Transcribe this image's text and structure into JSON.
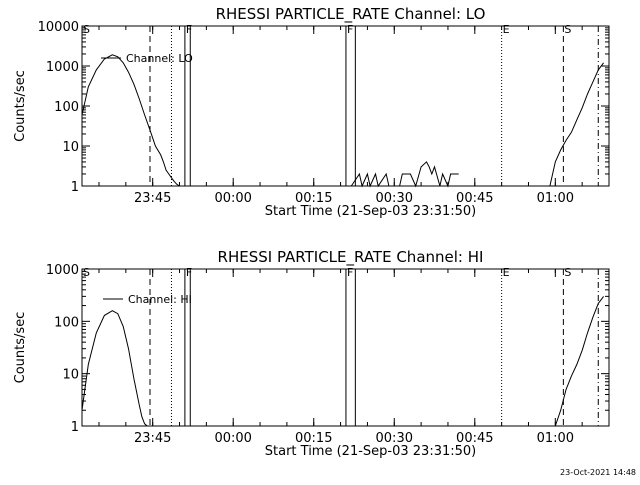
{
  "chart_data": [
    {
      "type": "line",
      "title": "RHESSI PARTICLE_RATE Channel: LO",
      "xlabel": "Start Time (21-Sep-03 23:31:50)",
      "ylabel": "Counts/sec",
      "y_scale": "log",
      "ylim": [
        1,
        10000
      ],
      "y_ticks": [
        "1",
        "10",
        "100",
        "1000",
        "10000"
      ],
      "x_ticks": [
        "23:45",
        "00:00",
        "00:15",
        "00:30",
        "00:45",
        "01:00"
      ],
      "xlim": [
        "23:31:50",
        "01:10:00"
      ],
      "legend": {
        "entries": [
          "Channel: LO"
        ],
        "placement": "top-left"
      },
      "series": [
        {
          "name": "Channel: LO",
          "x": [
            "23:31:50",
            "23:33:00",
            "23:34:30",
            "23:36:00",
            "23:37:30",
            "23:38:30",
            "23:39:30",
            "23:40:30",
            "23:41:30",
            "23:42:30",
            "23:43:30",
            "23:44:30",
            "23:45:30",
            "23:46:30",
            "23:47:00",
            "23:47:30",
            "23:48:00",
            "23:48:30",
            "23:49:00",
            "23:49:30",
            "23:50:00",
            "00:22:00",
            "00:23:30",
            "00:24:00",
            "00:25:00",
            "00:25:30",
            "00:26:30",
            "00:27:00",
            "00:28:30",
            "00:29:00",
            "00:31:00",
            "00:31:30",
            "00:33:00",
            "00:34:00",
            "00:35:00",
            "00:36:00",
            "00:36:30",
            "00:37:00",
            "00:37:30",
            "00:38:30",
            "00:39:00",
            "00:40:00",
            "00:40:30",
            "00:41:00",
            "00:42:00",
            "00:59:00",
            "00:59:30",
            "01:00:00",
            "01:01:00",
            "01:02:00",
            "01:03:00",
            "01:04:00",
            "01:05:00",
            "01:06:00",
            "01:07:00",
            "01:08:00",
            "01:09:00"
          ],
          "y": [
            60,
            300,
            800,
            1500,
            1900,
            1700,
            1200,
            700,
            350,
            150,
            60,
            25,
            10,
            6,
            4,
            2.5,
            2,
            1.6,
            1.3,
            1.1,
            1,
            1,
            2,
            1,
            2,
            1,
            2,
            1,
            2,
            1,
            1,
            2,
            2,
            1,
            3,
            4,
            3,
            2,
            3,
            1,
            2,
            1,
            2,
            2,
            2,
            1,
            2,
            4,
            8,
            14,
            22,
            45,
            90,
            200,
            400,
            800,
            1200
          ]
        }
      ],
      "markers": [
        {
          "label": "S",
          "time": "23:31:50",
          "style": "solid"
        },
        {
          "label": "",
          "time": "23:44:30",
          "style": "dashed"
        },
        {
          "label": "",
          "time": "23:48:30",
          "style": "dotted"
        },
        {
          "label": "F",
          "time": "23:51:00",
          "style": "solid"
        },
        {
          "label": "",
          "time": "23:52:00",
          "style": "solid"
        },
        {
          "label": "F",
          "time": "00:21:00",
          "style": "solid"
        },
        {
          "label": "",
          "time": "00:22:45",
          "style": "solid"
        },
        {
          "label": "E",
          "time": "00:50:00",
          "style": "dotted"
        },
        {
          "label": "S",
          "time": "01:01:30",
          "style": "dashed"
        },
        {
          "label": "",
          "time": "01:08:00",
          "style": "dashdot"
        }
      ]
    },
    {
      "type": "line",
      "title": "RHESSI PARTICLE_RATE Channel: HI",
      "xlabel": "Start Time (21-Sep-03 23:31:50)",
      "ylabel": "Counts/sec",
      "y_scale": "log",
      "ylim": [
        1,
        1000
      ],
      "y_ticks": [
        "1",
        "10",
        "100",
        "1000"
      ],
      "x_ticks": [
        "23:45",
        "00:00",
        "00:15",
        "00:30",
        "00:45",
        "01:00"
      ],
      "xlim": [
        "23:31:50",
        "01:10:00"
      ],
      "legend": {
        "entries": [
          "Channel: HI"
        ],
        "placement": "top-left"
      },
      "series": [
        {
          "name": "Channel: HI",
          "x": [
            "23:31:50",
            "23:33:00",
            "23:34:30",
            "23:36:00",
            "23:37:30",
            "23:38:30",
            "23:39:30",
            "23:40:30",
            "23:41:30",
            "23:42:30",
            "23:43:00",
            "23:43:30",
            "23:44:00",
            "01:00:00",
            "01:01:00",
            "01:02:00",
            "01:03:00",
            "01:04:00",
            "01:05:00",
            "01:06:00",
            "01:07:00",
            "01:08:00",
            "01:09:00"
          ],
          "y": [
            2,
            15,
            60,
            130,
            160,
            140,
            80,
            30,
            8,
            2.5,
            1.5,
            1.1,
            1,
            1,
            2,
            5,
            9,
            15,
            28,
            60,
            120,
            220,
            300
          ]
        }
      ],
      "markers": [
        {
          "label": "S",
          "time": "23:31:50",
          "style": "solid"
        },
        {
          "label": "",
          "time": "23:44:30",
          "style": "dashed"
        },
        {
          "label": "",
          "time": "23:48:30",
          "style": "dotted"
        },
        {
          "label": "F",
          "time": "23:51:00",
          "style": "solid"
        },
        {
          "label": "",
          "time": "23:52:00",
          "style": "solid"
        },
        {
          "label": "F",
          "time": "00:21:00",
          "style": "solid"
        },
        {
          "label": "",
          "time": "00:22:45",
          "style": "solid"
        },
        {
          "label": "E",
          "time": "00:50:00",
          "style": "dotted"
        },
        {
          "label": "S",
          "time": "01:01:30",
          "style": "dashed"
        },
        {
          "label": "",
          "time": "01:08:00",
          "style": "dashdot"
        }
      ]
    }
  ],
  "footer": {
    "timestamp": "23-Oct-2021 14:48"
  }
}
